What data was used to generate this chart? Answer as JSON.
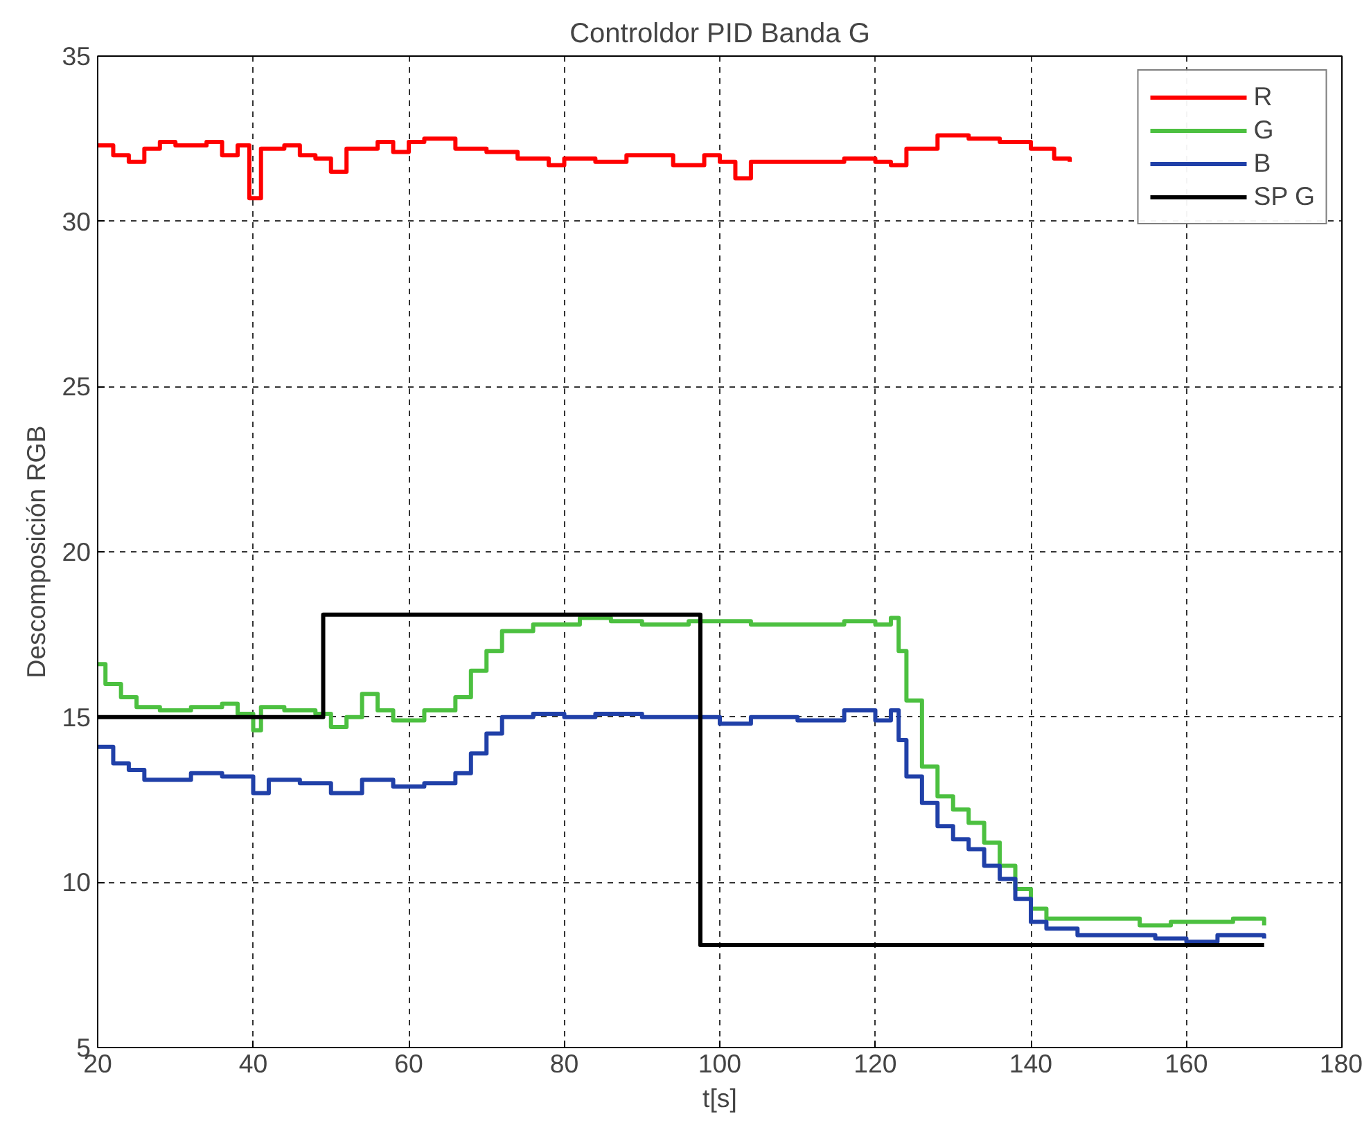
{
  "chart_data": {
    "type": "step",
    "title": "Controldor PID Banda G",
    "xlabel": "t[s]",
    "ylabel": "Descomposición RGB",
    "xlim": [
      20,
      180
    ],
    "xticks": [
      20,
      40,
      60,
      80,
      100,
      120,
      140,
      160,
      180
    ],
    "ylim": [
      5,
      35
    ],
    "yticks": [
      5,
      10,
      15,
      20,
      25,
      30,
      35
    ],
    "grid": true,
    "legend": "top right",
    "line_style": "solid",
    "marker": "none",
    "series": [
      {
        "name": "R",
        "color": "#ff0000",
        "x": [
          20,
          22,
          24,
          26,
          28,
          30,
          34,
          36,
          38,
          39.5,
          41,
          44,
          46,
          48,
          50,
          52,
          56,
          58,
          60,
          62,
          66,
          70,
          74,
          78,
          80,
          84,
          88,
          92,
          94,
          98,
          100,
          102,
          104,
          110,
          116,
          120,
          122,
          124,
          128,
          132,
          136,
          140,
          143,
          145
        ],
        "values": [
          32.3,
          32.0,
          31.8,
          32.2,
          32.4,
          32.3,
          32.4,
          32.0,
          32.3,
          30.7,
          32.2,
          32.3,
          32.0,
          31.9,
          31.5,
          32.2,
          32.4,
          32.1,
          32.4,
          32.5,
          32.2,
          32.1,
          31.9,
          31.7,
          31.9,
          31.8,
          32.0,
          32.0,
          31.7,
          32.0,
          31.8,
          31.3,
          31.8,
          31.8,
          31.9,
          31.8,
          31.7,
          32.2,
          32.6,
          32.5,
          32.4,
          32.2,
          31.9,
          31.8
        ]
      },
      {
        "name": "G",
        "color": "#4cc040",
        "x": [
          20,
          21,
          23,
          25,
          28,
          32,
          36,
          38,
          40,
          41,
          44,
          48,
          50,
          52,
          54,
          56,
          58,
          62,
          66,
          68,
          70,
          72,
          76,
          82,
          86,
          90,
          96,
          98,
          104,
          110,
          116,
          120,
          122,
          123,
          124,
          126,
          128,
          130,
          132,
          134,
          136,
          138,
          140,
          142,
          146,
          150,
          154,
          158,
          162,
          166,
          170
        ],
        "values": [
          16.6,
          16.0,
          15.6,
          15.3,
          15.2,
          15.3,
          15.4,
          15.1,
          14.6,
          15.3,
          15.2,
          15.1,
          14.7,
          15.0,
          15.7,
          15.2,
          14.9,
          15.2,
          15.6,
          16.4,
          17.0,
          17.6,
          17.8,
          18.0,
          17.9,
          17.8,
          17.9,
          17.9,
          17.8,
          17.8,
          17.9,
          17.8,
          18.0,
          17.0,
          15.5,
          13.5,
          12.6,
          12.2,
          11.8,
          11.2,
          10.5,
          9.8,
          9.2,
          8.9,
          8.9,
          8.9,
          8.7,
          8.8,
          8.8,
          8.9,
          8.7
        ]
      },
      {
        "name": "B",
        "color": "#2040a8",
        "x": [
          20,
          22,
          24,
          26,
          28,
          32,
          36,
          40,
          42,
          46,
          50,
          54,
          58,
          62,
          66,
          68,
          70,
          72,
          76,
          80,
          84,
          90,
          96,
          100,
          104,
          110,
          116,
          120,
          122,
          123,
          124,
          126,
          128,
          130,
          132,
          134,
          136,
          138,
          140,
          142,
          146,
          150,
          156,
          160,
          164,
          170
        ],
        "values": [
          14.1,
          13.6,
          13.4,
          13.1,
          13.1,
          13.3,
          13.2,
          12.7,
          13.1,
          13.0,
          12.7,
          13.1,
          12.9,
          13.0,
          13.3,
          13.9,
          14.5,
          15.0,
          15.1,
          15.0,
          15.1,
          15.0,
          15.0,
          14.8,
          15.0,
          14.9,
          15.2,
          14.9,
          15.2,
          14.3,
          13.2,
          12.4,
          11.7,
          11.3,
          11.0,
          10.5,
          10.1,
          9.5,
          8.8,
          8.6,
          8.4,
          8.4,
          8.3,
          8.2,
          8.4,
          8.3
        ]
      },
      {
        "name": "SP G",
        "color": "#000000",
        "x": [
          20,
          49,
          97.5,
          170
        ],
        "values": [
          15,
          18.1,
          8.1,
          8.1
        ]
      }
    ]
  }
}
